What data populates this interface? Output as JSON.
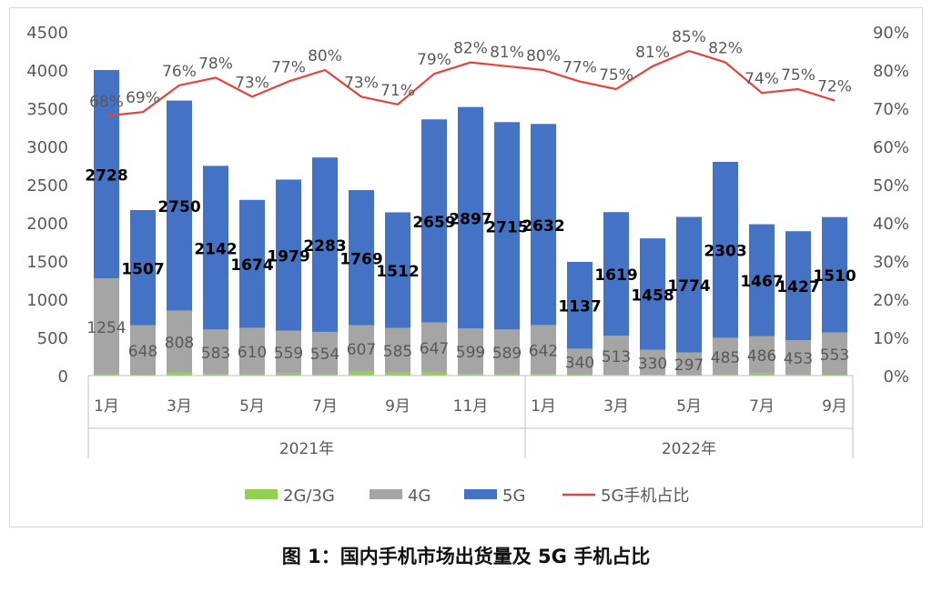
{
  "chart_data": {
    "type": "bar",
    "stacked": true,
    "categories": [
      "2021-01",
      "2021-02",
      "2021-03",
      "2021-04",
      "2021-05",
      "2021-06",
      "2021-07",
      "2021-08",
      "2021-09",
      "2021-10",
      "2021-11",
      "2021-12",
      "2022-01",
      "2022-02",
      "2022-03",
      "2022-04",
      "2022-05",
      "2022-06",
      "2022-07",
      "2022-08",
      "2022-09"
    ],
    "month_labels": [
      "1月",
      "",
      "3月",
      "",
      "5月",
      "",
      "7月",
      "",
      "9月",
      "",
      "11月",
      "",
      "1月",
      "",
      "3月",
      "",
      "5月",
      "",
      "7月",
      "",
      "9月"
    ],
    "year_labels": [
      "2021年",
      "2022年"
    ],
    "series": [
      {
        "name": "2G/3G",
        "type": "bar",
        "axis": "left",
        "color": "#92d050",
        "values": [
          18,
          12,
          42,
          20,
          16,
          28,
          18,
          52,
          40,
          48,
          20,
          14,
          20,
          12,
          8,
          8,
          6,
          10,
          28,
          10,
          12
        ]
      },
      {
        "name": "4G",
        "type": "bar",
        "axis": "left",
        "color": "#a5a5a5",
        "values": [
          1254,
          648,
          808,
          583,
          610,
          559,
          554,
          607,
          585,
          647,
          599,
          589,
          642,
          340,
          513,
          330,
          297,
          485,
          486,
          453,
          553
        ]
      },
      {
        "name": "5G",
        "type": "bar",
        "axis": "left",
        "color": "#4472c4",
        "values": [
          2728,
          1507,
          2750,
          2142,
          1674,
          1979,
          2283,
          1769,
          1512,
          2659,
          2897,
          2715,
          2632,
          1137,
          1619,
          1458,
          1774,
          2303,
          1467,
          1427,
          1510
        ]
      },
      {
        "name": "5G手机占比",
        "type": "line",
        "axis": "right",
        "color": "#e8423a",
        "values": [
          68,
          69,
          76,
          78,
          73,
          77,
          80,
          73,
          71,
          79,
          82,
          81,
          80,
          77,
          75,
          81,
          85,
          82,
          74,
          75,
          72
        ]
      }
    ],
    "y_left": {
      "min": 0,
      "max": 4500,
      "ticks": [
        "0",
        "500",
        "1000",
        "1500",
        "2000",
        "2500",
        "3000",
        "3500",
        "4000",
        "4500"
      ]
    },
    "y_right": {
      "min": 0,
      "max": 90,
      "ticks": [
        "0%",
        "10%",
        "20%",
        "30%",
        "40%",
        "50%",
        "60%",
        "70%",
        "80%",
        "90%"
      ]
    },
    "grid": false,
    "legend_position": "bottom",
    "legend": [
      "2G/3G",
      "4G",
      "5G",
      "5G手机占比"
    ]
  },
  "caption": "图 1：国内手机市场出货量及 5G 手机占比"
}
